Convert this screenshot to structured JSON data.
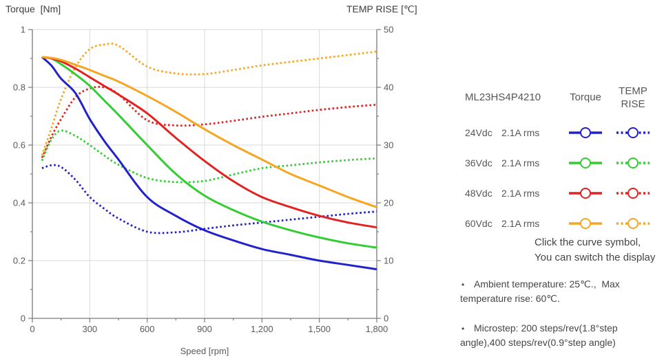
{
  "chart_data": {
    "type": "line",
    "x_label": "Speed [rpm]",
    "y_left_label": "Torque  [Nm]",
    "y_right_label": "TEMP RISE [℃]",
    "x_range": [
      0,
      1800
    ],
    "y_left_range": [
      0,
      1
    ],
    "y_right_range": [
      0,
      50
    ],
    "grid": true,
    "x_ticks": {
      "values": [
        0,
        300,
        600,
        900,
        1200,
        1500,
        1800
      ],
      "labels": [
        "0",
        "300",
        "600",
        "900",
        "1,200",
        "1,500",
        "1,800"
      ],
      "minor": [
        150,
        450,
        750,
        1050,
        1350,
        1650
      ]
    },
    "y_left_ticks": {
      "values": [
        0,
        0.2,
        0.4,
        0.6,
        0.8,
        1
      ],
      "labels": [
        "0",
        "0.2",
        "0.4",
        "0.6",
        "0.8",
        "1"
      ],
      "minor": [
        0.1,
        0.3,
        0.5,
        0.7,
        0.9
      ]
    },
    "y_right_ticks": {
      "values": [
        0,
        10,
        20,
        30,
        40,
        50
      ],
      "labels": [
        "0",
        "10",
        "20",
        "30",
        "40",
        "50"
      ],
      "minor": [
        5,
        15,
        25,
        35,
        45
      ]
    },
    "x": [
      50,
      100,
      150,
      225,
      300,
      375,
      450,
      600,
      750,
      900,
      1050,
      1200,
      1350,
      1500,
      1650,
      1800
    ],
    "series": [
      {
        "id": "temp-rise-24vdc",
        "name": "24Vdc TEMP RISE",
        "axis": "right",
        "style": "dotted",
        "color": "#2222cb",
        "values": [
          26,
          26.5,
          26.2,
          24,
          21,
          19,
          17.3,
          15,
          14.9,
          15.5,
          16.1,
          16.6,
          17.1,
          17.6,
          18.1,
          18.5
        ]
      },
      {
        "id": "temp-rise-36vdc",
        "name": "36Vdc TEMP RISE",
        "axis": "right",
        "style": "dotted",
        "color": "#33cc33",
        "values": [
          27.3,
          31,
          32.5,
          31.6,
          30,
          28.2,
          26.6,
          24.3,
          23.6,
          23.8,
          24.9,
          26,
          26.5,
          27,
          27.4,
          27.7
        ]
      },
      {
        "id": "temp-rise-48vdc",
        "name": "48Vdc TEMP RISE",
        "axis": "right",
        "style": "dotted",
        "color": "#e02222",
        "values": [
          27.8,
          31.5,
          34.5,
          38.3,
          39.8,
          40,
          38.8,
          34.3,
          33.4,
          33.6,
          34.2,
          34.9,
          35.5,
          36.1,
          36.6,
          37
        ]
      },
      {
        "id": "temp-rise-60vdc",
        "name": "60Vdc TEMP RISE",
        "axis": "right",
        "style": "dotted",
        "color": "#f5a623",
        "values": [
          28.2,
          33,
          38,
          43.5,
          46.6,
          47.4,
          47.2,
          43.6,
          42.4,
          42.3,
          43,
          43.8,
          44.4,
          45,
          45.6,
          46.2
        ]
      },
      {
        "id": "torque-24vdc",
        "name": "24Vdc Torque",
        "axis": "left",
        "style": "solid",
        "color": "#2222cb",
        "values": [
          0.905,
          0.875,
          0.83,
          0.78,
          0.69,
          0.615,
          0.55,
          0.42,
          0.355,
          0.305,
          0.27,
          0.24,
          0.22,
          0.2,
          0.185,
          0.17
        ]
      },
      {
        "id": "torque-36vdc",
        "name": "36Vdc Torque",
        "axis": "left",
        "style": "solid",
        "color": "#33cc33",
        "values": [
          0.905,
          0.9,
          0.88,
          0.845,
          0.805,
          0.755,
          0.705,
          0.6,
          0.5,
          0.425,
          0.375,
          0.335,
          0.305,
          0.28,
          0.26,
          0.245
        ]
      },
      {
        "id": "torque-48vdc",
        "name": "48Vdc Torque",
        "axis": "left",
        "style": "solid",
        "color": "#e02222",
        "values": [
          0.905,
          0.9,
          0.89,
          0.865,
          0.835,
          0.805,
          0.775,
          0.71,
          0.625,
          0.545,
          0.475,
          0.42,
          0.385,
          0.355,
          0.332,
          0.315
        ]
      },
      {
        "id": "torque-60vdc",
        "name": "60Vdc Torque",
        "axis": "left",
        "style": "solid",
        "color": "#f5a623",
        "values": [
          0.905,
          0.902,
          0.895,
          0.878,
          0.86,
          0.84,
          0.82,
          0.77,
          0.715,
          0.655,
          0.6,
          0.55,
          0.5,
          0.46,
          0.42,
          0.385
        ]
      }
    ]
  },
  "legend": {
    "model": "ML23HS4P4210",
    "torque_header": "Torque",
    "temp_header_line1": "TEMP",
    "temp_header_line2": "RISE",
    "rows": [
      {
        "voltage": "24Vdc",
        "current": "2.1A rms",
        "color": "#2222cb"
      },
      {
        "voltage": "36Vdc",
        "current": "2.1A rms",
        "color": "#33cc33"
      },
      {
        "voltage": "48Vdc",
        "current": "2.1A rms",
        "color": "#e02222"
      },
      {
        "voltage": "60Vdc",
        "current": "2.1A rms",
        "color": "#f5a623"
      }
    ]
  },
  "hint": {
    "lines": [
      "Click the curve symbol,",
      "You can switch the display"
    ]
  },
  "notes": [
    {
      "lines": [
        "Ambient temperature: 25℃.,  Max",
        "temperature rise: 60℃."
      ]
    },
    {
      "lines": [
        "Microstep: 200 steps/rev(1.8°step",
        "angle),400 steps/rev(0.9°step angle)"
      ]
    }
  ],
  "colors": {
    "gridline": "#d9d9d9",
    "axis": "#7a7a7a",
    "tick_label": "#595959"
  }
}
